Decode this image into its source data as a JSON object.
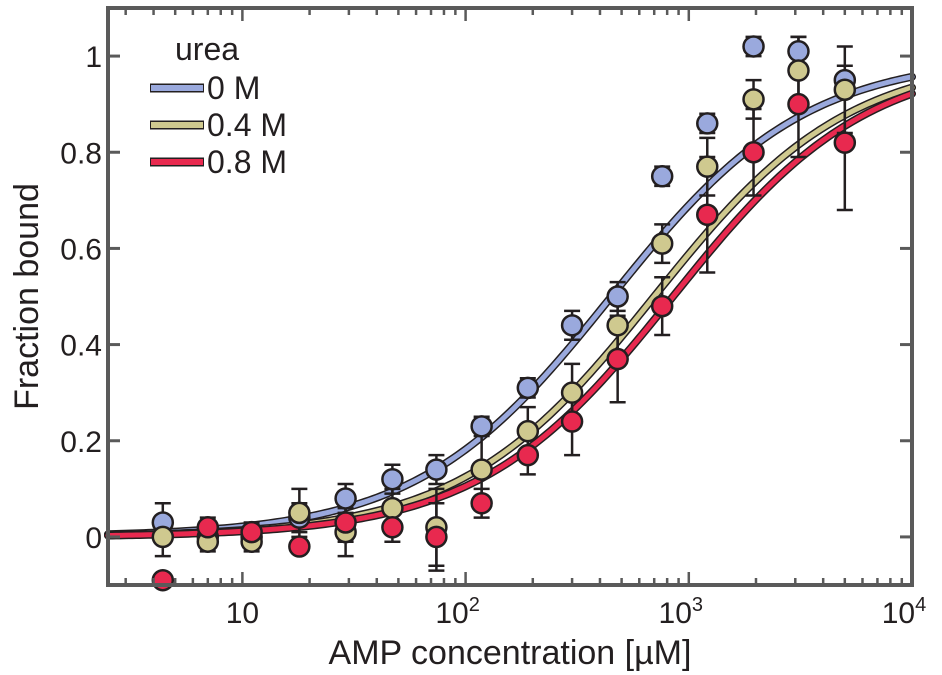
{
  "chart_data": {
    "type": "scatter",
    "xscale": "log",
    "xlim": [
      2.5,
      10000
    ],
    "ylim": [
      -0.1,
      1.1
    ],
    "xlabel": "AMP concentration [µM]",
    "ylabel": "Fraction bound",
    "x_ticks": [
      {
        "value": 10,
        "label": "10",
        "sup": ""
      },
      {
        "value": 100,
        "label": "10",
        "sup": "2"
      },
      {
        "value": 1000,
        "label": "10",
        "sup": "3"
      },
      {
        "value": 10000,
        "label": "10",
        "sup": "4"
      }
    ],
    "y_ticks": [
      {
        "value": 0,
        "label": "0"
      },
      {
        "value": 0.2,
        "label": "0.2"
      },
      {
        "value": 0.4,
        "label": "0.4"
      },
      {
        "value": 0.6,
        "label": "0.6"
      },
      {
        "value": 0.8,
        "label": "0.8"
      },
      {
        "value": 1,
        "label": "1"
      }
    ],
    "legend": {
      "title": "urea",
      "position": "top-left"
    },
    "series": [
      {
        "name": "0 M",
        "color": "#9aa9dd",
        "fit": {
          "kd": 450
        },
        "points": [
          {
            "x": 4.4,
            "y": 0.03,
            "err": 0.04
          },
          {
            "x": 7,
            "y": 0.0,
            "err": 0.02
          },
          {
            "x": 11,
            "y": 0.0,
            "err": 0.02
          },
          {
            "x": 18,
            "y": 0.04,
            "err": 0.03
          },
          {
            "x": 29,
            "y": 0.08,
            "err": 0.03
          },
          {
            "x": 47,
            "y": 0.12,
            "err": 0.03
          },
          {
            "x": 74,
            "y": 0.14,
            "err": 0.03
          },
          {
            "x": 118,
            "y": 0.23,
            "err": 0.02
          },
          {
            "x": 190,
            "y": 0.31,
            "err": 0.02
          },
          {
            "x": 300,
            "y": 0.44,
            "err": 0.03
          },
          {
            "x": 480,
            "y": 0.5,
            "err": 0.03
          },
          {
            "x": 760,
            "y": 0.75,
            "err": 0.02
          },
          {
            "x": 1210,
            "y": 0.86,
            "err": 0.02
          },
          {
            "x": 1950,
            "y": 1.02,
            "err": 0.02
          },
          {
            "x": 3100,
            "y": 1.01,
            "err": 0.03
          },
          {
            "x": 5000,
            "y": 0.95,
            "err": 0.03
          }
        ]
      },
      {
        "name": "0.4 M",
        "color": "#cfc98f",
        "fit": {
          "kd": 700
        },
        "points": [
          {
            "x": 4.4,
            "y": 0.0,
            "err": 0.04
          },
          {
            "x": 7,
            "y": -0.01,
            "err": 0.02
          },
          {
            "x": 11,
            "y": -0.01,
            "err": 0.02
          },
          {
            "x": 18,
            "y": 0.05,
            "err": 0.05
          },
          {
            "x": 29,
            "y": 0.01,
            "err": 0.05
          },
          {
            "x": 47,
            "y": 0.06,
            "err": 0.04
          },
          {
            "x": 74,
            "y": 0.02,
            "err": 0.08
          },
          {
            "x": 118,
            "y": 0.14,
            "err": 0.08
          },
          {
            "x": 190,
            "y": 0.22,
            "err": 0.05
          },
          {
            "x": 300,
            "y": 0.3,
            "err": 0.06
          },
          {
            "x": 480,
            "y": 0.44,
            "err": 0.06
          },
          {
            "x": 760,
            "y": 0.61,
            "err": 0.04
          },
          {
            "x": 1210,
            "y": 0.77,
            "err": 0.06
          },
          {
            "x": 1950,
            "y": 0.91,
            "err": 0.04
          },
          {
            "x": 3100,
            "y": 0.97,
            "err": 0.07
          },
          {
            "x": 5000,
            "y": 0.93,
            "err": 0.09
          }
        ]
      },
      {
        "name": "0.8 M",
        "color": "#e8294f",
        "fit": {
          "kd": 850
        },
        "points": [
          {
            "x": 4.4,
            "y": -0.09,
            "err": 0.005
          },
          {
            "x": 7,
            "y": 0.02,
            "err": 0.02
          },
          {
            "x": 11,
            "y": 0.01,
            "err": 0.02
          },
          {
            "x": 18,
            "y": -0.02,
            "err": 0.01
          },
          {
            "x": 29,
            "y": 0.03,
            "err": 0.04
          },
          {
            "x": 47,
            "y": 0.02,
            "err": 0.03
          },
          {
            "x": 74,
            "y": 0.0,
            "err": 0.07
          },
          {
            "x": 118,
            "y": 0.07,
            "err": 0.03
          },
          {
            "x": 190,
            "y": 0.17,
            "err": 0.04
          },
          {
            "x": 300,
            "y": 0.24,
            "err": 0.07
          },
          {
            "x": 480,
            "y": 0.37,
            "err": 0.09
          },
          {
            "x": 760,
            "y": 0.48,
            "err": 0.06
          },
          {
            "x": 1210,
            "y": 0.67,
            "err": 0.12
          },
          {
            "x": 1950,
            "y": 0.8,
            "err": 0.09
          },
          {
            "x": 3100,
            "y": 0.9,
            "err": 0.11
          },
          {
            "x": 5000,
            "y": 0.82,
            "err": 0.14
          }
        ]
      }
    ]
  }
}
